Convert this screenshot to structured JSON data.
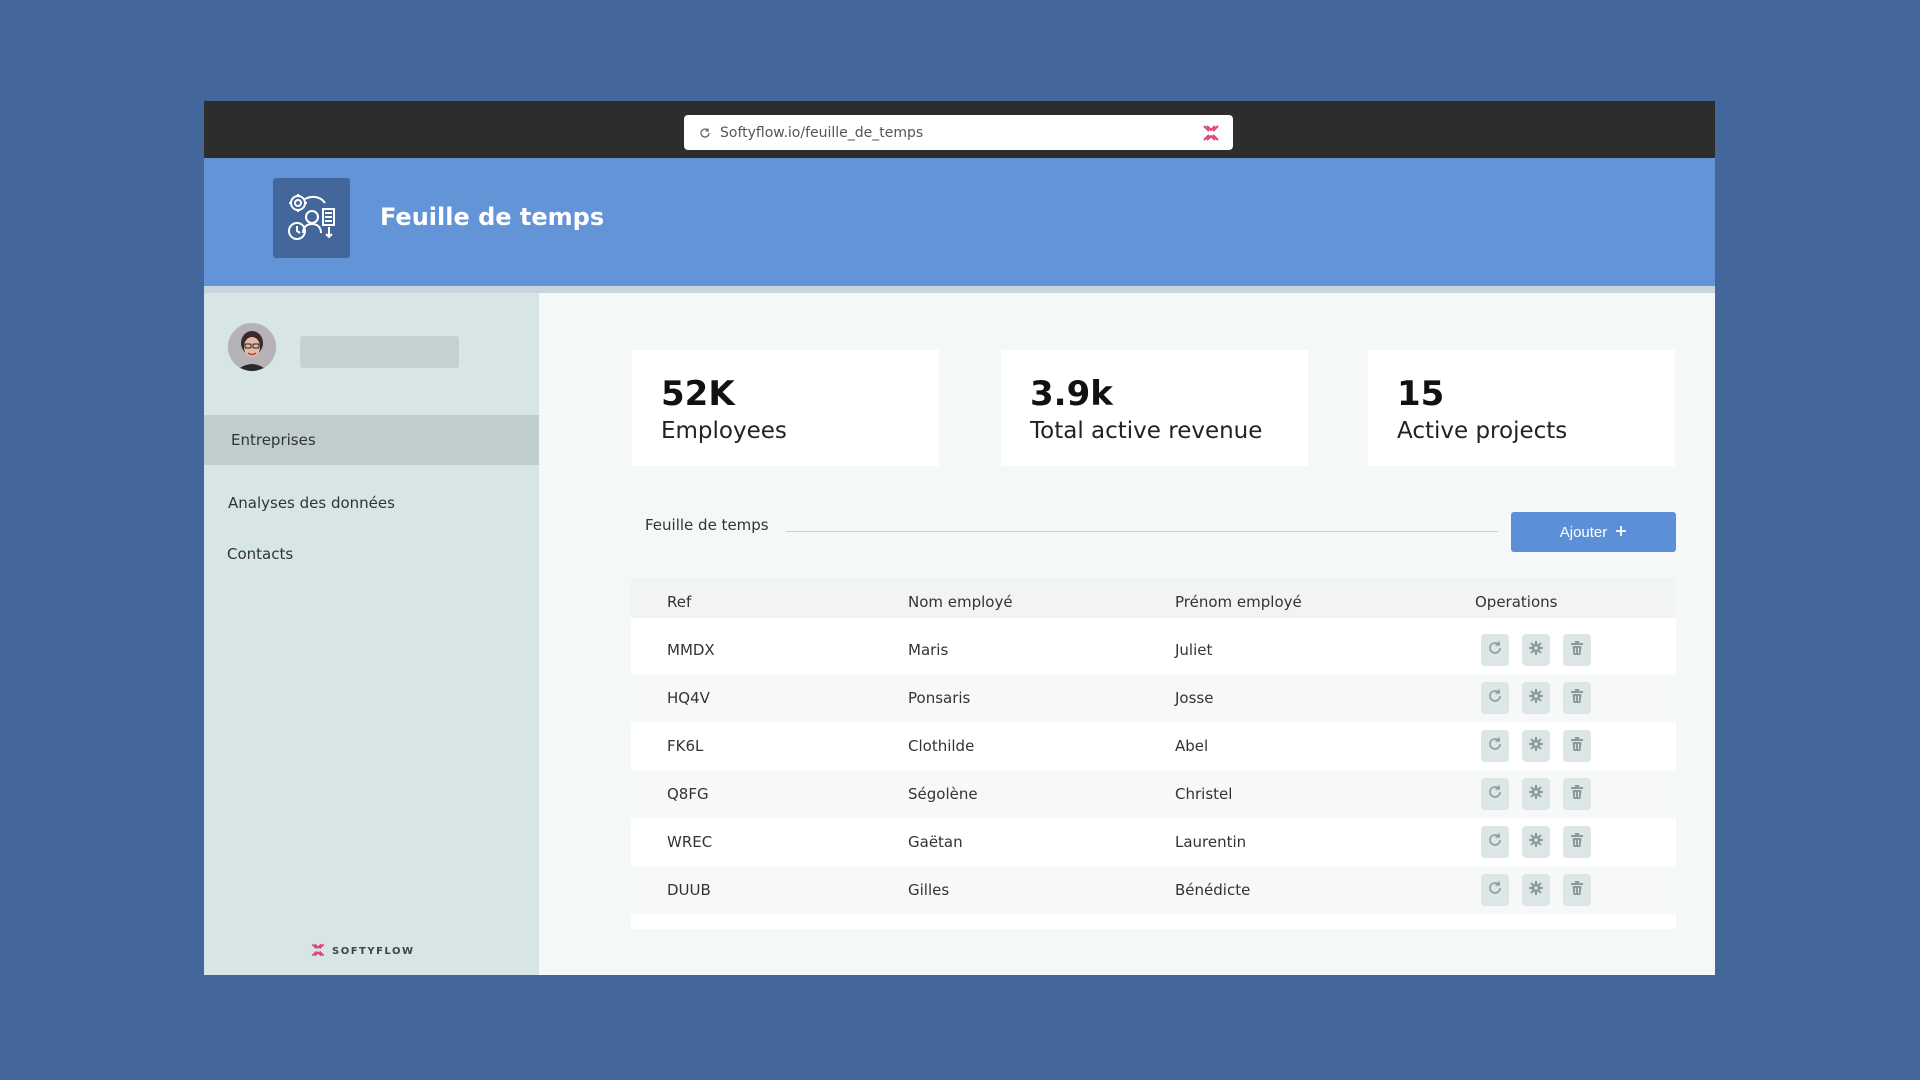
{
  "browser": {
    "url": "Softyflow.io/feuille_de_temps"
  },
  "header": {
    "title": "Feuille de temps"
  },
  "sidebar": {
    "items": [
      {
        "label": "Entreprises"
      },
      {
        "label": "Analyses des données"
      },
      {
        "label": "Contacts"
      }
    ],
    "brand": "SOFTYFLOW"
  },
  "stats": [
    {
      "value": "52K",
      "label": "Employees"
    },
    {
      "value": "3.9k",
      "label": "Total active revenue"
    },
    {
      "value": "15",
      "label": "Active projects"
    }
  ],
  "section": {
    "title": "Feuille de temps",
    "add_label": "Ajouter"
  },
  "table": {
    "headers": [
      "Ref",
      "Nom employé",
      "Prénom employé",
      "Operations"
    ],
    "rows": [
      [
        "MMDX",
        "Maris",
        "Juliet"
      ],
      [
        "HQ4V",
        "Ponsaris",
        "Josse"
      ],
      [
        "FK6L",
        "Clothilde",
        "Abel"
      ],
      [
        "Q8FG",
        "Ségolène",
        "Christel"
      ],
      [
        "WREC",
        "Gaëtan",
        "Laurentin"
      ],
      [
        "DUUB",
        "Gilles",
        "Bénédicte"
      ]
    ]
  },
  "colors": {
    "background": "#44679b",
    "header": "#6494d8",
    "accent": "#5b8fd8",
    "brand": "#e0407a"
  }
}
